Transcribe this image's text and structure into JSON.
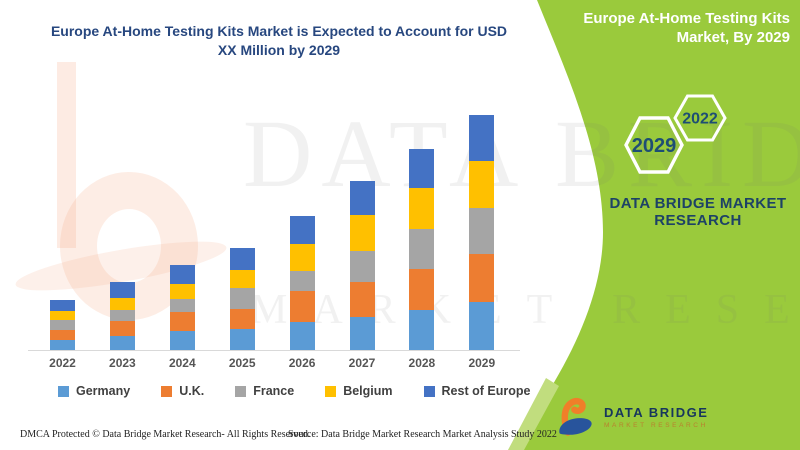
{
  "left_panel": {
    "title": "Europe At-Home Testing Kits Market is Expected to Account for USD XX Million by 2029",
    "title_lines": [
      "Europe At-Home Testing Kits Market is Expected to Account for USD",
      "XX Million by 2029"
    ]
  },
  "chart_data": {
    "type": "bar",
    "stacked": true,
    "title": "Europe At-Home Testing Kits Market is Expected to Account for USD XX Million by 2029",
    "xlabel": "",
    "ylabel": "",
    "value_note": "Values are intentionally undisclosed on the chart (USD XX Million); series values below are relative heights estimated from pixels, 1 unit = 1 px",
    "grid": false,
    "legend_position": "bottom",
    "axis_line_color": "#d9d9d9",
    "categories": [
      "2022",
      "2023",
      "2024",
      "2025",
      "2026",
      "2027",
      "2028",
      "2029"
    ],
    "series": [
      {
        "name": "Germany",
        "color": "#5B9BD5",
        "values": [
          10,
          14,
          19,
          21,
          28,
          33,
          40,
          48
        ]
      },
      {
        "name": "U.K.",
        "color": "#ED7D31",
        "values": [
          10,
          15,
          19,
          20,
          31,
          35,
          41,
          48
        ]
      },
      {
        "name": "France",
        "color": "#A5A5A5",
        "values": [
          10,
          11,
          13,
          21,
          20,
          31,
          40,
          46
        ]
      },
      {
        "name": "Belgium",
        "color": "#FFC000",
        "values": [
          9,
          12,
          15,
          18,
          27,
          36,
          41,
          47
        ]
      },
      {
        "name": "Rest of Europe",
        "color": "#4472C4",
        "values": [
          11,
          16,
          19,
          22,
          28,
          34,
          39,
          46
        ]
      }
    ]
  },
  "right_panel": {
    "bg_color": "#9aca3c",
    "accent_color": "#c1dd7e",
    "title": "Europe At-Home Testing Kits Market, By 2029",
    "hexagons": [
      {
        "label": "2029"
      },
      {
        "label": "2022"
      }
    ],
    "brand_line1": "DATA BRIDGE MARKET",
    "brand_line2": "RESEARCH"
  },
  "watermark": {
    "line1": "DATA BRIDGE",
    "line2": "MARKET RESEARCH"
  },
  "footer": {
    "dmca": "DMCA Protected © Data Bridge Market Research- All Rights Reserved.",
    "source": "Source: Data Bridge Market Research Market Analysis Study 2022"
  },
  "logo": {
    "name": "DATA BRIDGE",
    "subtitle": "MARKET RESEARCH",
    "orange": "#f07f29",
    "blue": "#28549c"
  }
}
